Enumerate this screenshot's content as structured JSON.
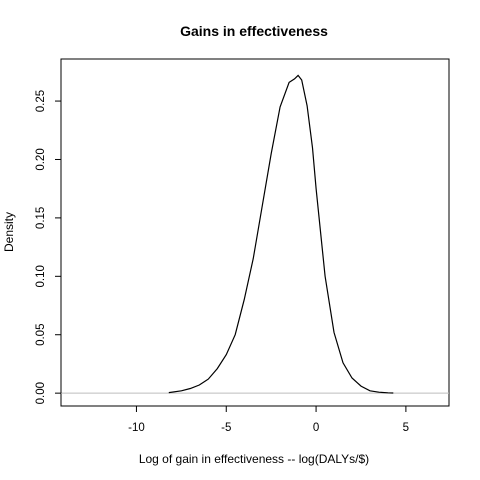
{
  "chart_data": {
    "type": "line",
    "title": "Gains in effectiveness",
    "xlabel": "Log of gain in effectiveness -- log(DALYs/$)",
    "ylabel": "Density",
    "xlim": [
      -14.2,
      7.4
    ],
    "ylim": [
      -0.011,
      0.286
    ],
    "x_ticks": [
      -10,
      -5,
      0,
      5
    ],
    "x_tick_labels": [
      "-10",
      "-5",
      "0",
      "5"
    ],
    "y_ticks": [
      0.0,
      0.05,
      0.1,
      0.15,
      0.2,
      0.25
    ],
    "y_tick_labels": [
      "0.00",
      "0.05",
      "0.10",
      "0.15",
      "0.20",
      "0.25"
    ],
    "baseline": 0,
    "baseline_color": "#bebebe",
    "line_color": "#000000",
    "grid": false,
    "legend": "none",
    "series": [
      {
        "x": [
          -8.2,
          -7.5,
          -7.0,
          -6.5,
          -6.0,
          -5.5,
          -5.0,
          -4.5,
          -4.0,
          -3.5,
          -3.0,
          -2.5,
          -2.0,
          -1.5,
          -1.2,
          -1.0,
          -0.8,
          -0.5,
          -0.2,
          0.0,
          0.3,
          0.5,
          1.0,
          1.5,
          2.0,
          2.5,
          3.0,
          3.5,
          4.0,
          4.3
        ],
        "y": [
          0.0005,
          0.002,
          0.004,
          0.007,
          0.012,
          0.021,
          0.033,
          0.05,
          0.08,
          0.115,
          0.16,
          0.205,
          0.245,
          0.266,
          0.269,
          0.272,
          0.268,
          0.246,
          0.21,
          0.175,
          0.13,
          0.1,
          0.052,
          0.026,
          0.013,
          0.006,
          0.002,
          0.0008,
          0.0003,
          0.0001
        ]
      }
    ]
  }
}
